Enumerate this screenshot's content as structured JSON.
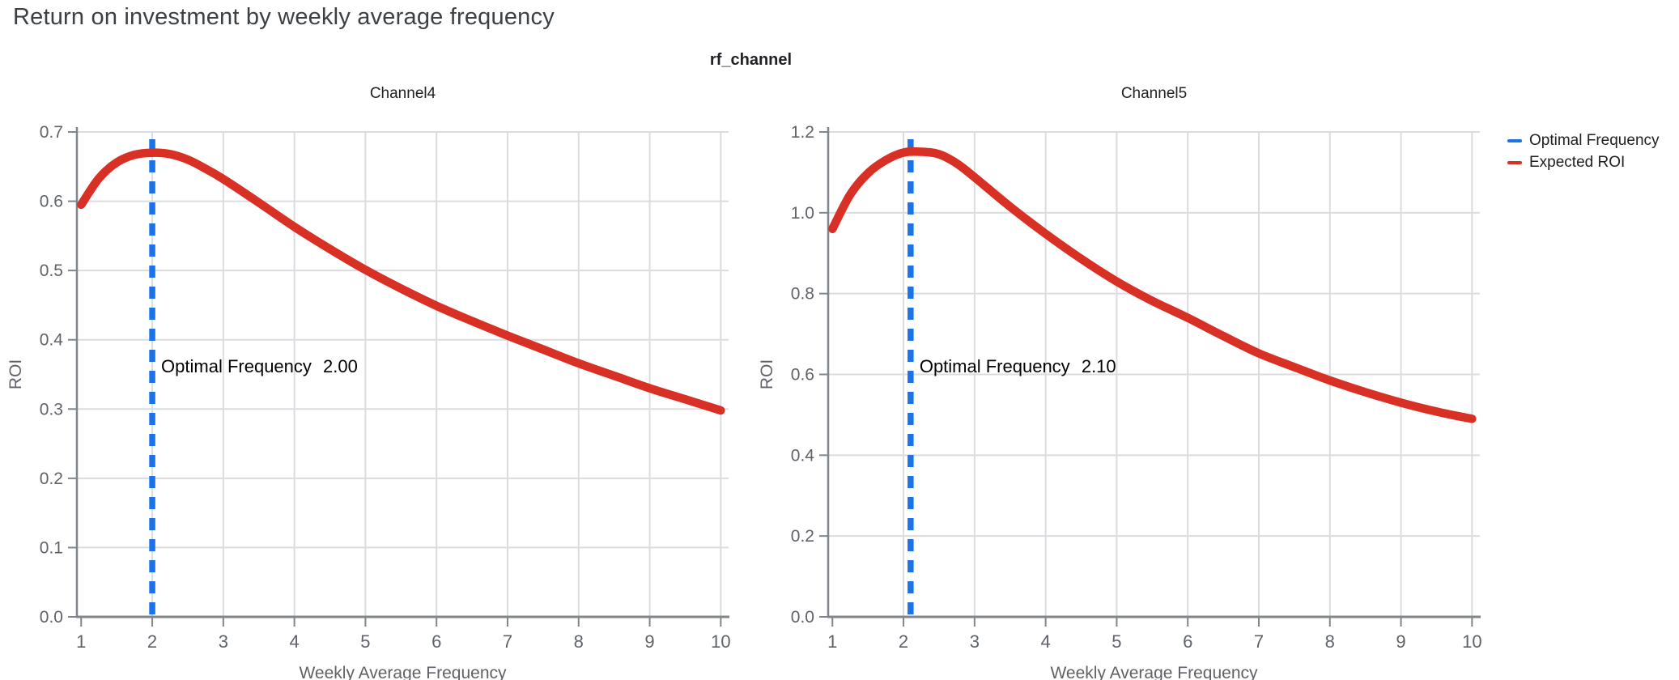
{
  "page": {
    "title": "Return on investment by weekly average frequency",
    "suptitle": "rf_channel"
  },
  "legend": {
    "position": "top-right",
    "items": [
      {
        "label": "Optimal Frequency",
        "color": "#1a73e8",
        "style": "dashed-line"
      },
      {
        "label": "Expected ROI",
        "color": "#d93025",
        "style": "solid-line"
      }
    ]
  },
  "colors": {
    "expected_roi": "#d93025",
    "optimal_frequency": "#1a73e8",
    "grid": "#dadce0",
    "axis": "#80868b",
    "tick_label": "#5f6368",
    "title": "#3c4043",
    "facet_title": "#202124",
    "annotation": "#000000"
  },
  "chart_data": [
    {
      "type": "line",
      "title": "Channel4",
      "xlabel": "Weekly Average Frequency",
      "ylabel": "ROI",
      "xlim": [
        1,
        10
      ],
      "ylim": [
        0,
        0.7
      ],
      "xticks": [
        "1",
        "2",
        "3",
        "4",
        "5",
        "6",
        "7",
        "8",
        "9",
        "10"
      ],
      "yticks": [
        "0.0",
        "0.1",
        "0.2",
        "0.3",
        "0.4",
        "0.5",
        "0.6",
        "0.7"
      ],
      "grid": true,
      "optimal_frequency": 2.0,
      "annotation": {
        "label": "Optimal Frequency",
        "value": "2.00"
      },
      "series": [
        {
          "name": "Expected ROI",
          "x": [
            1,
            1.25,
            1.5,
            1.75,
            2,
            2.25,
            2.5,
            2.75,
            3,
            3.5,
            4,
            4.5,
            5,
            5.5,
            6,
            6.5,
            7,
            7.5,
            8,
            8.5,
            9,
            9.5,
            10
          ],
          "y": [
            0.595,
            0.633,
            0.656,
            0.667,
            0.67,
            0.668,
            0.66,
            0.647,
            0.632,
            0.598,
            0.563,
            0.531,
            0.501,
            0.474,
            0.449,
            0.427,
            0.406,
            0.386,
            0.366,
            0.348,
            0.33,
            0.314,
            0.298
          ]
        }
      ]
    },
    {
      "type": "line",
      "title": "Channel5",
      "xlabel": "Weekly Average Frequency",
      "ylabel": "ROI",
      "xlim": [
        1,
        10
      ],
      "ylim": [
        0,
        1.2
      ],
      "xticks": [
        "1",
        "2",
        "3",
        "4",
        "5",
        "6",
        "7",
        "8",
        "9",
        "10"
      ],
      "yticks": [
        "0.0",
        "0.2",
        "0.4",
        "0.6",
        "0.8",
        "1.0",
        "1.2"
      ],
      "grid": true,
      "optimal_frequency": 2.1,
      "annotation": {
        "label": "Optimal Frequency",
        "value": "2.10"
      },
      "series": [
        {
          "name": "Expected ROI",
          "x": [
            1,
            1.25,
            1.5,
            1.75,
            2,
            2.25,
            2.5,
            2.75,
            3,
            3.5,
            4,
            4.5,
            5,
            5.5,
            6,
            6.5,
            7,
            7.5,
            8,
            8.5,
            9,
            9.5,
            10
          ],
          "y": [
            0.96,
            1.045,
            1.098,
            1.13,
            1.149,
            1.151,
            1.145,
            1.122,
            1.088,
            1.015,
            0.948,
            0.886,
            0.83,
            0.782,
            0.74,
            0.695,
            0.652,
            0.618,
            0.585,
            0.556,
            0.53,
            0.508,
            0.49
          ]
        }
      ]
    }
  ]
}
